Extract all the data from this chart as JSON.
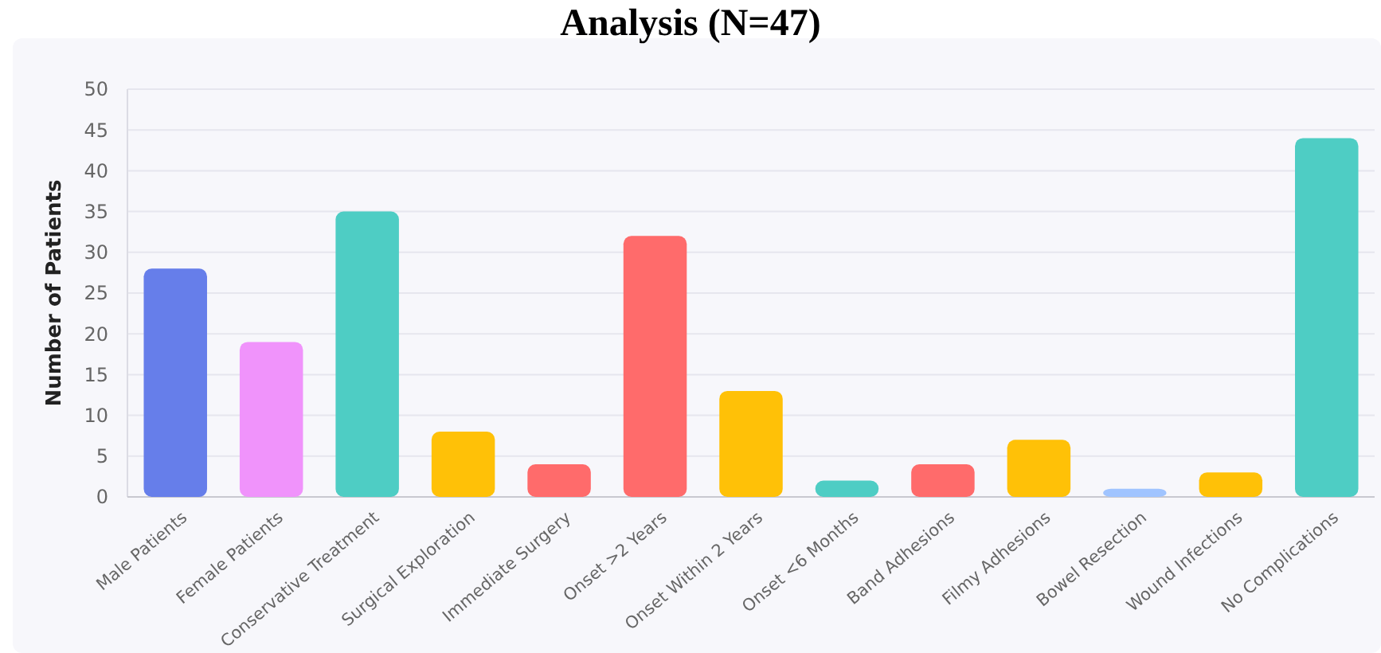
{
  "chart_data": {
    "type": "bar",
    "title": "Analysis (N=47)",
    "ylabel": "Number of Patients",
    "categories": [
      "Male Patients",
      "Female Patients",
      "Conservative Treatment",
      "Surgical Exploration",
      "Immediate Surgery",
      "Onset >2 Years",
      "Onset Within 2 Years",
      "Onset <6 Months",
      "Band Adhesions",
      "Filmy Adhesions",
      "Bowel Resection",
      "Wound Infections",
      "No Complications"
    ],
    "values": [
      28,
      19,
      35,
      8,
      4,
      32,
      13,
      2,
      4,
      7,
      1,
      3,
      44
    ],
    "colors": [
      "#667eea",
      "#f093fb",
      "#4ecdc4",
      "#ffc107",
      "#ff6b6b",
      "#ff6b6b",
      "#ffc107",
      "#4ecdc4",
      "#ff6b6b",
      "#ffc107",
      "#a0c4ff",
      "#ffc107",
      "#4ecdc4"
    ],
    "ylim": [
      0,
      50
    ],
    "yticks": [
      0,
      5,
      10,
      15,
      20,
      25,
      30,
      35,
      40,
      45,
      50
    ],
    "grid": "y"
  }
}
